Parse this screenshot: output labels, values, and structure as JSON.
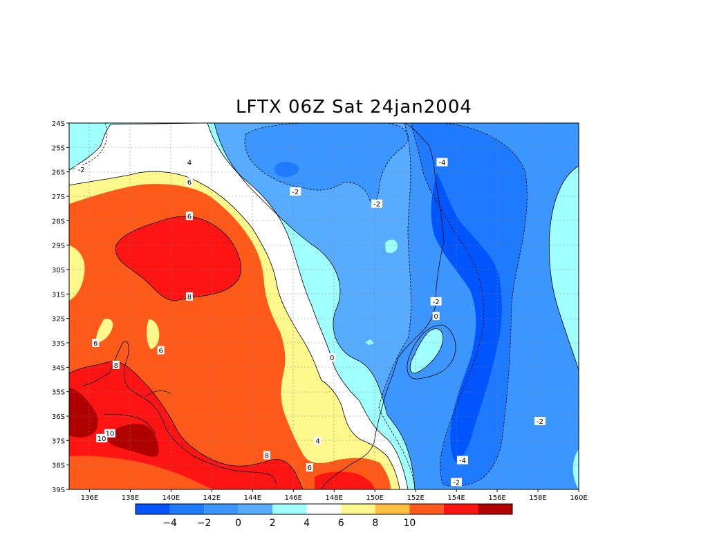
{
  "title": "LFTX 06Z Sat 24jan2004",
  "map": {
    "y_axis_labels": [
      "24S",
      "25S",
      "26S",
      "27S",
      "28S",
      "29S",
      "30S",
      "31S",
      "32S",
      "33S",
      "34S",
      "35S",
      "36S",
      "37S",
      "38S",
      "39S"
    ],
    "x_axis_labels": [
      "136E",
      "138E",
      "140E",
      "142E",
      "144E",
      "146E",
      "148E",
      "150E",
      "152E",
      "154E",
      "156E",
      "158E",
      "160E"
    ],
    "lon_range": [
      135,
      160
    ],
    "lat_range": [
      -39,
      -24
    ],
    "contour_labels": [
      {
        "text": "-2",
        "lon": 135.6,
        "lat": -25.9
      },
      {
        "text": "4",
        "lon": 140.9,
        "lat": -25.6
      },
      {
        "text": "6",
        "lon": 140.9,
        "lat": -26.4
      },
      {
        "text": "-2",
        "lon": 146.1,
        "lat": -26.8
      },
      {
        "text": "-2",
        "lon": 150.1,
        "lat": -27.3
      },
      {
        "text": "-4",
        "lon": 153.3,
        "lat": -25.6
      },
      {
        "text": "6",
        "lon": 140.9,
        "lat": -27.8
      },
      {
        "text": "8",
        "lon": 140.9,
        "lat": -31.1
      },
      {
        "text": "-2",
        "lon": 153.0,
        "lat": -31.3
      },
      {
        "text": "0",
        "lon": 153.0,
        "lat": -31.9
      },
      {
        "text": "6",
        "lon": 136.3,
        "lat": -33.0
      },
      {
        "text": "6",
        "lon": 139.5,
        "lat": -33.3
      },
      {
        "text": "8",
        "lon": 137.3,
        "lat": -33.9
      },
      {
        "text": "0",
        "lon": 147.9,
        "lat": -33.6
      },
      {
        "text": "-2",
        "lon": 158.1,
        "lat": -36.2
      },
      {
        "text": "10",
        "lon": 137.0,
        "lat": -36.7
      },
      {
        "text": "10",
        "lon": 136.6,
        "lat": -36.9
      },
      {
        "text": "4",
        "lon": 147.2,
        "lat": -37.0
      },
      {
        "text": "8",
        "lon": 144.7,
        "lat": -37.6
      },
      {
        "text": "-4",
        "lon": 154.3,
        "lat": -37.8
      },
      {
        "text": "6",
        "lon": 146.8,
        "lat": -38.1
      },
      {
        "text": "-2",
        "lon": 154.0,
        "lat": -38.7
      }
    ]
  },
  "colorbar": {
    "colors": [
      "#0055ff",
      "#1e7bff",
      "#3c96ff",
      "#57acff",
      "#a0ffff",
      "#ffffff",
      "#fff88c",
      "#ffbf40",
      "#ff5a1a",
      "#ff1414",
      "#b00000"
    ],
    "labels": [
      "-4",
      "-2",
      "0",
      "2",
      "4",
      "6",
      "8",
      "10"
    ]
  }
}
